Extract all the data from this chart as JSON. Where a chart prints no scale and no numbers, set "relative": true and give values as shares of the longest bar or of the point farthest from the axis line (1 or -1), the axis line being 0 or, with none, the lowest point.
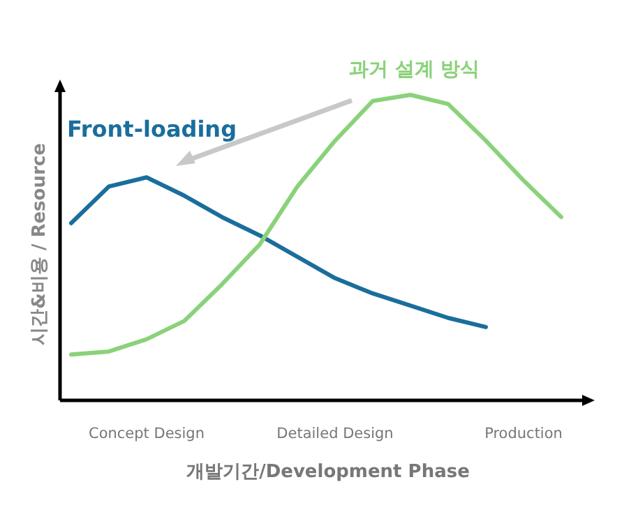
{
  "chart_data": {
    "type": "line",
    "relative": true,
    "xlabel": "개발기간/Development Phase",
    "ylabel": "시간&비용 / Resource",
    "categories": [
      null,
      null,
      "Concept Design",
      null,
      null,
      null,
      null,
      "Detailed Design",
      null,
      null,
      null,
      null,
      "Production",
      null
    ],
    "series": [
      {
        "name": "Front-loading",
        "color": "#1a6e9c",
        "values": [
          0.58,
          0.7,
          0.73,
          0.67,
          0.6,
          0.54,
          0.47,
          0.4,
          0.35,
          0.31,
          0.27,
          0.24,
          null,
          null
        ]
      },
      {
        "name": "과거 설계 방식",
        "color": "#8ad27a",
        "values": [
          0.15,
          0.16,
          0.2,
          0.26,
          0.38,
          0.51,
          0.7,
          0.85,
          0.98,
          1.0,
          0.97,
          0.85,
          0.72,
          0.6
        ]
      }
    ],
    "grid": false,
    "marker": "none",
    "line_style": "solid"
  }
}
